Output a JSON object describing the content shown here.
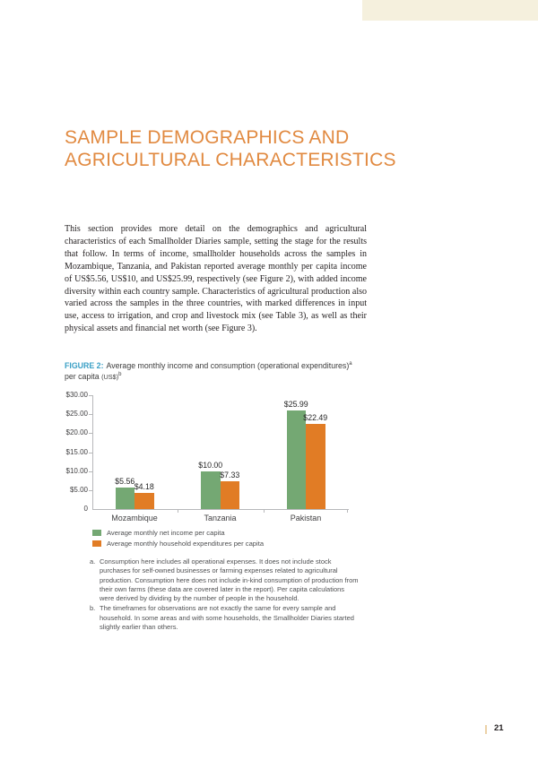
{
  "heading": {
    "line1": "SAMPLE DEMOGRAPHICS AND",
    "line2": "AGRICULTURAL CHARACTERISTICS"
  },
  "body_paragraph": "This section provides more detail on the demographics and agricultural characteristics of each Smallholder Diaries sample, setting the stage for the results that follow. In terms of income, smallholder households across the samples in Mozambique, Tanzania, and Pakistan reported average monthly per capita income of US$5.56, US$10, and US$25.99, respectively (see Figure 2), with added income diversity within each country sample. Characteristics of agricultural production also varied across the samples in the three countries, with marked differences in input use, access to irrigation, and crop and livestock mix (see Table 3), as well as their physical assets and financial net worth (see Figure 3).",
  "figure_caption": {
    "label": "FIGURE 2:",
    "title": "Average monthly income and consumption (operational expenditures)",
    "sup_a": "a",
    "line2": "per capita ",
    "line2_unit": "(US$)",
    "sup_b": "b"
  },
  "chart_data": {
    "type": "bar",
    "title": "Average monthly income and consumption (operational expenditures) per capita (US$)",
    "categories": [
      "Mozambique",
      "Tanzania",
      "Pakistan"
    ],
    "series": [
      {
        "name": "Average monthly net income per capita",
        "color": "#74a873",
        "values": [
          5.56,
          10.0,
          25.99
        ],
        "labels": [
          "$5.56",
          "$10.00",
          "$25.99"
        ]
      },
      {
        "name": "Average monthly household expenditures per capita",
        "color": "#e17c25",
        "values": [
          4.18,
          7.33,
          22.49
        ],
        "labels": [
          "$4.18",
          "$7.33",
          "$22.49"
        ]
      }
    ],
    "y_ticks": [
      "$30.00",
      "$25.00",
      "$20.00",
      "$15.00",
      "$10.00",
      "$5.00",
      "0"
    ],
    "ylim": [
      0,
      30
    ],
    "grid": false,
    "legend_position": "bottom-left"
  },
  "footnotes": [
    {
      "marker": "a.",
      "text": "Consumption here includes all operational expenses. It does not include stock purchases for self-owned businesses or farming expenses related to agricultural production. Consumption here does not include in-kind consumption of production from their own farms (these data are covered later in the report). Per capita calculations were derived by dividing by the number of people in the household."
    },
    {
      "marker": "b.",
      "text": "The timeframes for observations are not exactly the same for every sample and household. In some areas and with some households, the Smallholder Diaries started slightly earlier than others."
    }
  ],
  "page": {
    "number": "21"
  },
  "colors": {
    "heading_orange": "#e18a41",
    "figure_label_blue": "#3ba0c6",
    "series_green": "#74a873",
    "series_orange": "#e17c25",
    "accent_block_cream": "#f5f0dd",
    "page_divider_tan": "#ecd2a8",
    "axis_gray": "#b7b8ba"
  }
}
